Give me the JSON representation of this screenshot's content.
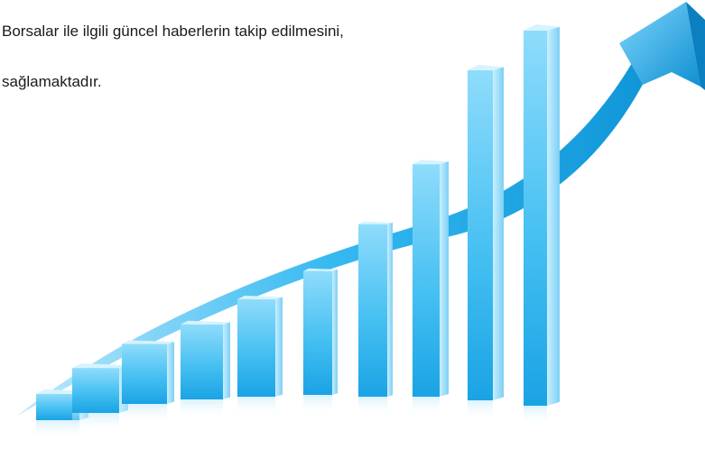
{
  "text": {
    "line1": "Borsalar ile ilgili güncel haberlerin takip edilmesini,",
    "line2": "sağlamaktadır."
  },
  "graphic": {
    "subject": "growth-bar-chart-with-rising-arrow",
    "bar_relative_heights": [
      0.07,
      0.12,
      0.16,
      0.2,
      0.26,
      0.33,
      0.46,
      0.62,
      0.88,
      1.0
    ],
    "colors": {
      "bar_front_light": "#a8e4fb",
      "bar_front_dark": "#1ea6e6",
      "bar_side": "#0d8cd1",
      "bar_top": "#d6f3ff",
      "arrow": "#1cb1ee"
    }
  }
}
